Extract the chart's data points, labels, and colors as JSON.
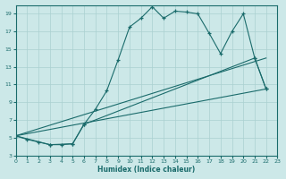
{
  "xlabel": "Humidex (Indice chaleur)",
  "bg_color": "#cce8e8",
  "grid_color": "#aad0d0",
  "line_color": "#1a6b6b",
  "xlim": [
    0,
    23
  ],
  "ylim": [
    3,
    20
  ],
  "xticks": [
    0,
    1,
    2,
    3,
    4,
    5,
    6,
    7,
    8,
    9,
    10,
    11,
    12,
    13,
    14,
    15,
    16,
    17,
    18,
    19,
    20,
    21,
    22,
    23
  ],
  "yticks": [
    3,
    5,
    7,
    9,
    11,
    13,
    15,
    17,
    19
  ],
  "line1_x": [
    0,
    1,
    2,
    3,
    4,
    5,
    6,
    7,
    8,
    9,
    10,
    11,
    12,
    13,
    14,
    15,
    16,
    17,
    18,
    19,
    20,
    21,
    22
  ],
  "line1_y": [
    5.2,
    4.8,
    4.5,
    4.2,
    4.2,
    4.3,
    6.5,
    8.2,
    10.3,
    13.8,
    17.5,
    18.5,
    19.8,
    18.5,
    19.3,
    19.2,
    19.0,
    16.8,
    14.5,
    17.0,
    19.0,
    14.0,
    10.5
  ],
  "line2_x": [
    0,
    3,
    5,
    6,
    21,
    22
  ],
  "line2_y": [
    5.2,
    4.2,
    4.3,
    6.5,
    14.0,
    10.5
  ],
  "line3_x": [
    0,
    22
  ],
  "line3_y": [
    5.2,
    10.5
  ],
  "line4_x": [
    0,
    22
  ],
  "line4_y": [
    5.2,
    14.0
  ]
}
